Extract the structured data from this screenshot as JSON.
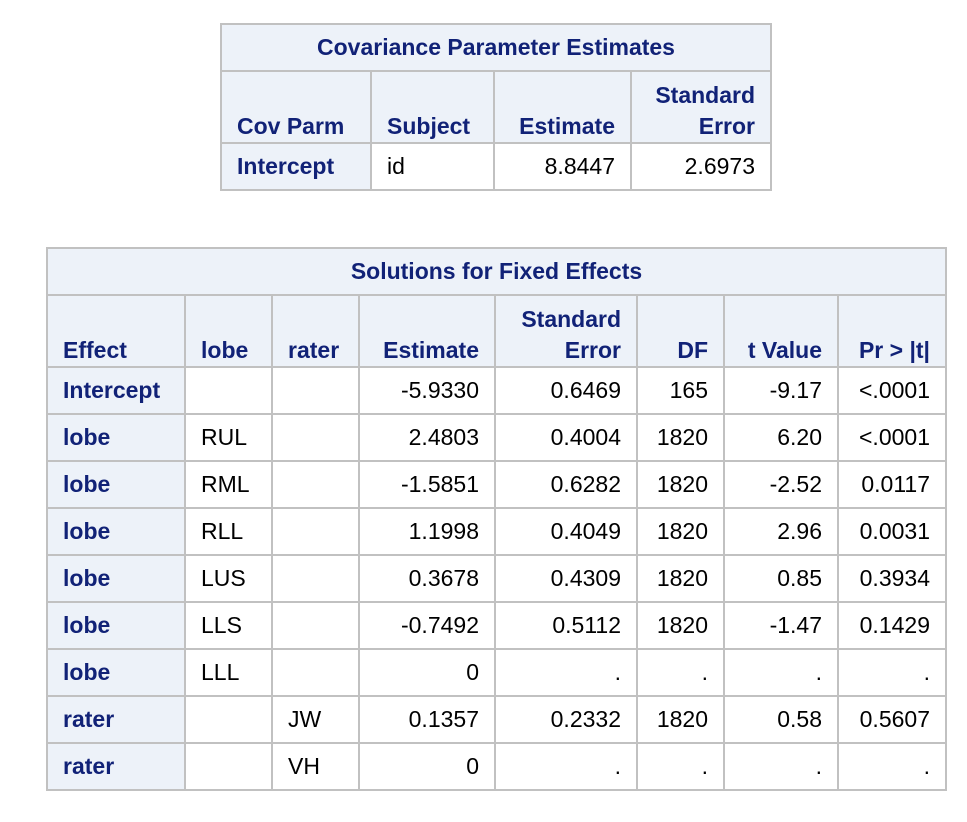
{
  "covariance_table": {
    "title": "Covariance Parameter Estimates",
    "headers": [
      "Cov Parm",
      "Subject",
      "Estimate",
      "Standard",
      "Error"
    ],
    "rows": [
      {
        "cov_parm": "Intercept",
        "subject": "id",
        "estimate": "8.8447",
        "std_error": "2.6973"
      }
    ]
  },
  "fixed_effects_table": {
    "title": "Solutions for Fixed Effects",
    "headers": {
      "effect": "Effect",
      "lobe": "lobe",
      "rater": "rater",
      "estimate": "Estimate",
      "std_error_line1": "Standard",
      "std_error_line2": "Error",
      "df": "DF",
      "t_value": "t Value",
      "p_value": "Pr > |t|"
    },
    "rows": [
      {
        "effect": "Intercept",
        "lobe": "",
        "rater": "",
        "estimate": "-5.9330",
        "std_error": "0.6469",
        "df": "165",
        "t_value": "-9.17",
        "p_value": "<.0001"
      },
      {
        "effect": "lobe",
        "lobe": "RUL",
        "rater": "",
        "estimate": "2.4803",
        "std_error": "0.4004",
        "df": "1820",
        "t_value": "6.20",
        "p_value": "<.0001"
      },
      {
        "effect": "lobe",
        "lobe": "RML",
        "rater": "",
        "estimate": "-1.5851",
        "std_error": "0.6282",
        "df": "1820",
        "t_value": "-2.52",
        "p_value": "0.0117"
      },
      {
        "effect": "lobe",
        "lobe": "RLL",
        "rater": "",
        "estimate": "1.1998",
        "std_error": "0.4049",
        "df": "1820",
        "t_value": "2.96",
        "p_value": "0.0031"
      },
      {
        "effect": "lobe",
        "lobe": "LUS",
        "rater": "",
        "estimate": "0.3678",
        "std_error": "0.4309",
        "df": "1820",
        "t_value": "0.85",
        "p_value": "0.3934"
      },
      {
        "effect": "lobe",
        "lobe": "LLS",
        "rater": "",
        "estimate": "-0.7492",
        "std_error": "0.5112",
        "df": "1820",
        "t_value": "-1.47",
        "p_value": "0.1429"
      },
      {
        "effect": "lobe",
        "lobe": "LLL",
        "rater": "",
        "estimate": "0",
        "std_error": ".",
        "df": ".",
        "t_value": ".",
        "p_value": "."
      },
      {
        "effect": "rater",
        "lobe": "",
        "rater": "JW",
        "estimate": "0.1357",
        "std_error": "0.2332",
        "df": "1820",
        "t_value": "0.58",
        "p_value": "0.5607"
      },
      {
        "effect": "rater",
        "lobe": "",
        "rater": "VH",
        "estimate": "0",
        "std_error": ".",
        "df": ".",
        "t_value": ".",
        "p_value": "."
      }
    ]
  }
}
